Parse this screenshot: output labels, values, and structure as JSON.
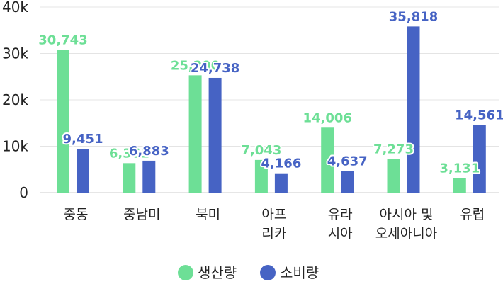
{
  "chart_data": {
    "type": "bar",
    "categories": [
      [
        "중동"
      ],
      [
        "중남미"
      ],
      [
        "북미"
      ],
      [
        "아프",
        "리카"
      ],
      [
        "유라",
        "시아"
      ],
      [
        "아시아 및",
        "오세아니아"
      ],
      [
        "유럽"
      ]
    ],
    "series": [
      {
        "name": "생산량",
        "color": "#6ddf96",
        "values": [
          30743,
          6361,
          25290,
          7043,
          14006,
          7273,
          3131
        ],
        "labels": [
          "30,743",
          "6,361",
          "25,290",
          "7,043",
          "14,006",
          "7,273",
          "3,131"
        ]
      },
      {
        "name": "소비량",
        "color": "#4663c4",
        "values": [
          9451,
          6883,
          24738,
          4166,
          4637,
          35818,
          14561
        ],
        "labels": [
          "9,451",
          "6,883",
          "24,738",
          "4,166",
          "4,637",
          "35,818",
          "14,561"
        ]
      }
    ],
    "yticks": [
      0,
      10000,
      20000,
      30000,
      40000
    ],
    "ytick_labels": [
      "0",
      "10k",
      "20k",
      "30k",
      "40k"
    ],
    "ylim": [
      0,
      40000
    ],
    "legend_position": "bottom-center",
    "grid": true,
    "title": "",
    "xlabel": "",
    "ylabel": ""
  }
}
